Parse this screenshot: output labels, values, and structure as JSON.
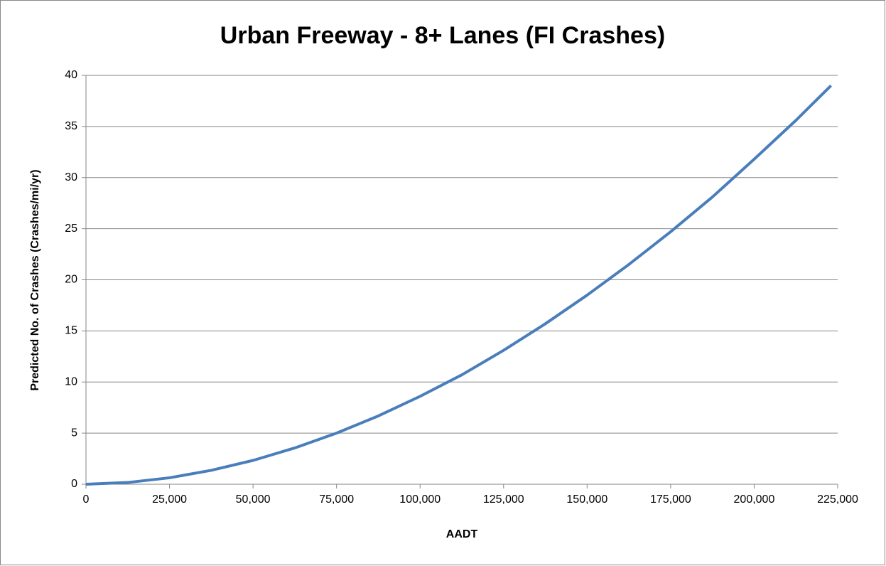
{
  "chart_data": {
    "type": "line",
    "title": "Urban Freeway - 8+ Lanes (FI Crashes)",
    "xlabel": "AADT",
    "ylabel": "Predicted No. of Crashes (Crashes/mi/yr)",
    "x": [
      0,
      12500,
      25000,
      37500,
      50000,
      62500,
      75000,
      87500,
      100000,
      112500,
      125000,
      137500,
      150000,
      162500,
      175000,
      187500,
      200000,
      212500,
      223000
    ],
    "series": [
      {
        "color": "#4a7ebb",
        "values": [
          0,
          0.17,
          0.63,
          1.36,
          2.33,
          3.55,
          5,
          6.68,
          8.6,
          10.7,
          13.1,
          15.7,
          18.5,
          21.5,
          24.7,
          28.1,
          31.8,
          35.6,
          39.0
        ]
      }
    ],
    "xlim": [
      0,
      225000
    ],
    "xticks": [
      0,
      {
        "value": 25000,
        "label": "25,000"
      },
      {
        "value": 50000,
        "label": "50,000"
      },
      {
        "value": 75000,
        "label": "75,000"
      },
      {
        "value": 100000,
        "label": "100,000"
      },
      {
        "value": 125000,
        "label": "125,000"
      },
      {
        "value": 150000,
        "label": "150,000"
      },
      {
        "value": 175000,
        "label": "175,000"
      },
      {
        "value": 200000,
        "label": "200,000"
      },
      {
        "value": 225000,
        "label": "225,000"
      }
    ],
    "ylim": [
      0,
      40
    ],
    "yticks": [
      0,
      5,
      10,
      15,
      20,
      25,
      30,
      35,
      40
    ],
    "grid": true
  }
}
